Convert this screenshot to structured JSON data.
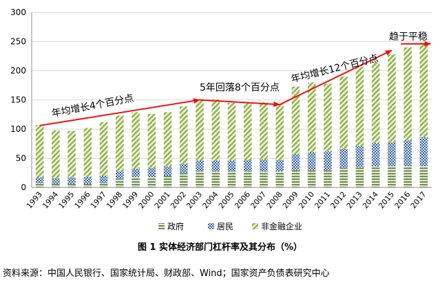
{
  "chart_data": {
    "type": "bar",
    "stacked": true,
    "categories": [
      "1993",
      "1994",
      "1995",
      "1996",
      "1997",
      "1998",
      "1999",
      "2000",
      "2001",
      "2002",
      "2003",
      "2004",
      "2005",
      "2006",
      "2007",
      "2008",
      "2009",
      "2010",
      "2011",
      "2012",
      "2013",
      "2014",
      "2015",
      "2016",
      "2017"
    ],
    "series": [
      {
        "name": "政府",
        "values": [
          7,
          6,
          6,
          6,
          7,
          14,
          18,
          18,
          20,
          24,
          28,
          28,
          28,
          28,
          28,
          27,
          30,
          30,
          30,
          33,
          35,
          36,
          37,
          37,
          37
        ]
      },
      {
        "name": "居民",
        "values": [
          10,
          10,
          11,
          12,
          13,
          14,
          14,
          15,
          16,
          16,
          18,
          18,
          18,
          19,
          20,
          20,
          27,
          30,
          32,
          33,
          36,
          40,
          40,
          44,
          49
        ]
      },
      {
        "name": "非金融企业",
        "values": [
          90,
          82,
          80,
          84,
          92,
          95,
          97,
          93,
          93,
          99,
          104,
          105,
          99,
          97,
          98,
          96,
          116,
          120,
          116,
          124,
          136,
          139,
          151,
          159,
          162
        ]
      }
    ],
    "ylim": [
      0,
      300
    ],
    "yticks": [
      0,
      50,
      100,
      150,
      200,
      250,
      300
    ],
    "grid": true,
    "legend_position": "bottom",
    "annotations": [
      {
        "text": "年均增长4个百分点"
      },
      {
        "text": "5年回落8个百分点"
      },
      {
        "text": "年均增长12个百分点"
      },
      {
        "text": "趋于平稳"
      }
    ],
    "trend_arrows": [
      {
        "from_year": "1993",
        "from_value": 106,
        "to_year": "2003",
        "to_value": 150
      },
      {
        "from_year": "2003",
        "from_value": 150,
        "to_year": "2008",
        "to_value": 142
      },
      {
        "from_year": "2008",
        "from_value": 142,
        "to_year": "2015",
        "to_value": 235
      },
      {
        "from_year": "2016",
        "from_value": 246,
        "to_year": "2017",
        "to_value": 246
      }
    ]
  },
  "colors": {
    "government": "#7a9a5a",
    "household": "#4a6fa5",
    "enterprise": "#9bb85a",
    "arrow": "#ee1111",
    "grid": "#d9d9d9"
  },
  "caption": "图 1  实体经济部门杠杆率及其分布（%）",
  "source": "资料来源：中国人民银行、国家统计局、财政部、Wind；国家资产负债表研究中心"
}
